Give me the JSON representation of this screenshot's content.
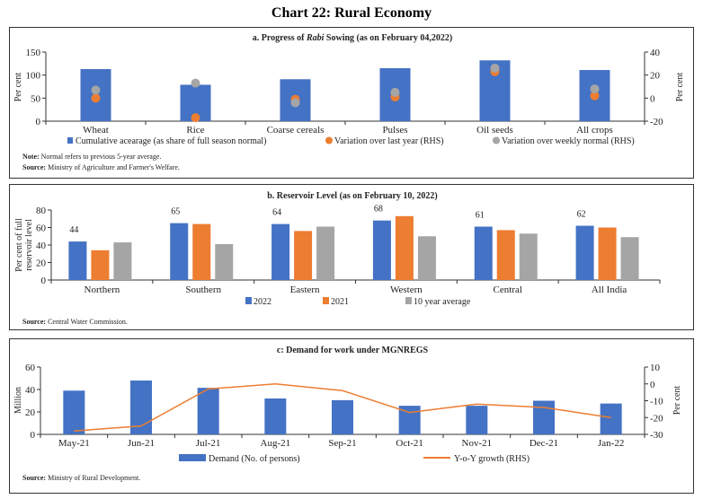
{
  "title": "Chart 22: Rural Economy",
  "chart_data": [
    {
      "type": "bar",
      "title_prefix": "a. Progress of ",
      "title_italic": "Rabi",
      "title_suffix": " Sowing (as on February 04,2022)",
      "categories": [
        "Wheat",
        "Rice",
        "Coarse cereals",
        "Pulses",
        "Oil seeds",
        "All crops"
      ],
      "ylabel": "Per cent",
      "y2label": "Per cent",
      "ylim": [
        0,
        150
      ],
      "yticks": [
        0,
        50,
        100,
        150
      ],
      "y2lim": [
        -20,
        40
      ],
      "y2ticks": [
        -20,
        0,
        20,
        40
      ],
      "series": [
        {
          "name": "Cumulative acearage (as share of full season normal)",
          "kind": "bar",
          "axis": "left",
          "color": "#4472C4",
          "values": [
            113,
            79,
            91,
            115,
            132,
            111
          ]
        },
        {
          "name": "Variation over last year (RHS)",
          "kind": "dot",
          "axis": "right",
          "color": "#ED7D31",
          "values": [
            0,
            -17,
            -1,
            1,
            23,
            2
          ]
        },
        {
          "name": "Variation over weekly normal (RHS)",
          "kind": "dot",
          "axis": "right",
          "color": "#A5A5A5",
          "values": [
            7,
            13,
            -4,
            5,
            26,
            8
          ]
        }
      ],
      "note_label": "Note:",
      "note": " Normal refers to previous 5-year average.",
      "source_label": "Source:",
      "source": " Ministry of Agriculture and Farmer's Welfare."
    },
    {
      "type": "bar",
      "title": "b. Reservoir Level (as on February 10, 2022)",
      "categories": [
        "Northern",
        "Southern",
        "Eastern",
        "Western",
        "Central",
        "All India"
      ],
      "ylabel": "Per cent of full reservoir level",
      "ylim": [
        0,
        80
      ],
      "yticks": [
        0,
        20,
        40,
        60,
        80
      ],
      "series": [
        {
          "name": "2022",
          "color": "#4472C4",
          "values": [
            44,
            65,
            64,
            68,
            61,
            62
          ],
          "data_labels": [
            "44",
            "65",
            "64",
            "68",
            "61",
            "62"
          ]
        },
        {
          "name": "2021",
          "color": "#ED7D31",
          "values": [
            34,
            64,
            56,
            73,
            57,
            60
          ]
        },
        {
          "name": "10 year average",
          "color": "#A5A5A5",
          "values": [
            43,
            41,
            61,
            50,
            53,
            49
          ]
        }
      ],
      "source_label": "Source:",
      "source": " Central Water Commission."
    },
    {
      "type": "bar",
      "title": "c: Demand for work under MGNREGS",
      "categories": [
        "May-21",
        "Jun-21",
        "Jul-21",
        "Aug-21",
        "Sep-21",
        "Oct-21",
        "Nov-21",
        "Dec-21",
        "Jan-22"
      ],
      "ylabel": "Million",
      "y2label": "Per cent",
      "ylim": [
        0,
        60
      ],
      "yticks": [
        0,
        20,
        40,
        60
      ],
      "y2lim": [
        -30,
        10
      ],
      "y2ticks": [
        -30,
        -20,
        -10,
        0,
        10
      ],
      "series": [
        {
          "name": "Demand (No. of persons)",
          "kind": "bar",
          "axis": "left",
          "color": "#4472C4",
          "values": [
            39,
            48,
            41.5,
            32,
            30.5,
            25.5,
            25.5,
            30,
            27.5
          ]
        },
        {
          "name": "Y-o-Y growth (RHS)",
          "kind": "line",
          "axis": "right",
          "color": "#ED7D31",
          "values": [
            -28,
            -25,
            -3,
            0,
            -4,
            -17,
            -12,
            -14,
            -20
          ]
        }
      ],
      "source_label": "Source:",
      "source": " Ministry of Rural Development."
    }
  ]
}
